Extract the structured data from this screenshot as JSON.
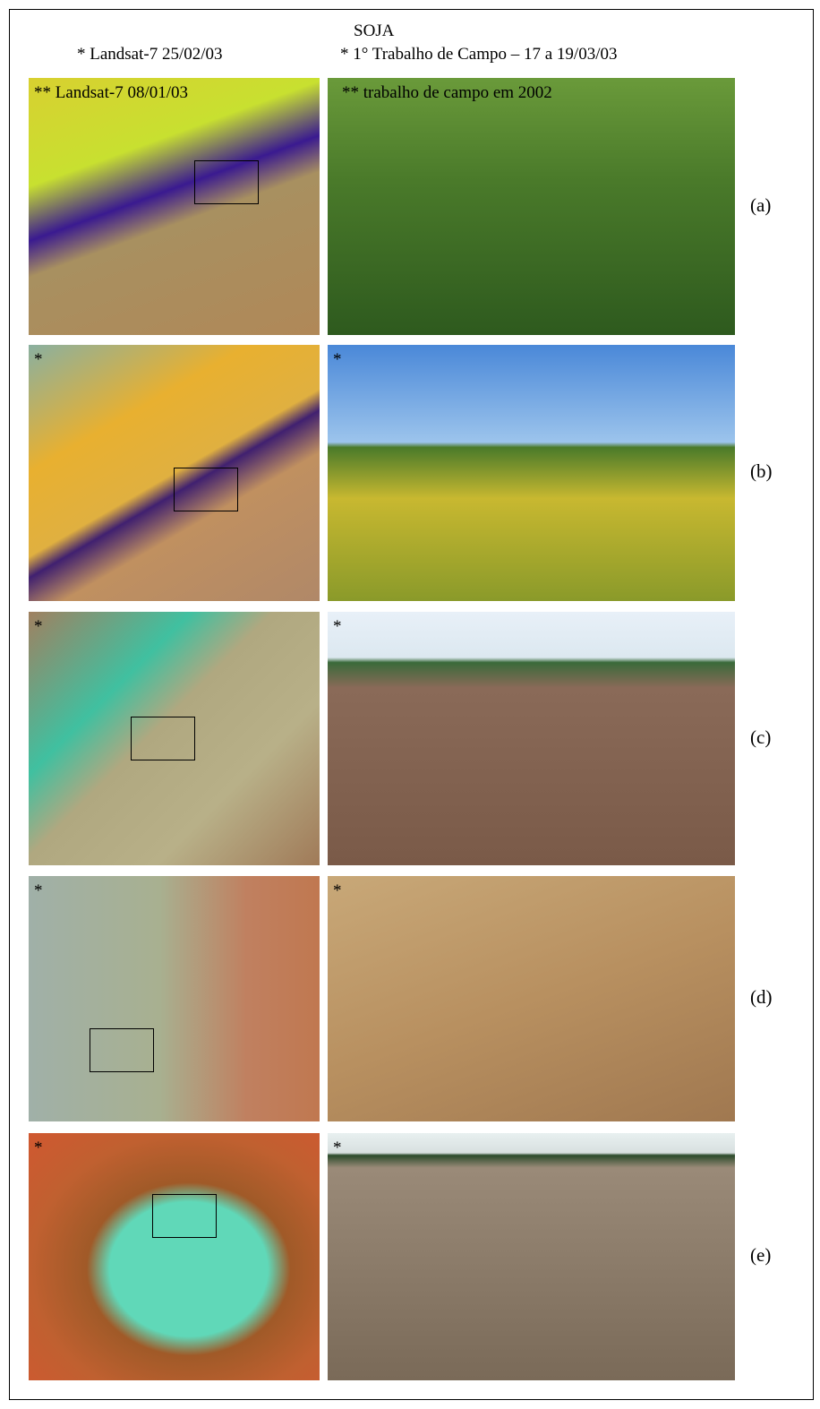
{
  "header": {
    "title": "SOJA",
    "left_caption": "* Landsat-7 25/02/03",
    "right_caption": "* 1° Trabalho de Campo – 17 a 19/03/03"
  },
  "rows": [
    {
      "label": "(a)",
      "satellite_note": "** Landsat-7 08/01/03",
      "photo_note": "** trabalho de campo em 2002"
    },
    {
      "label": "(b)",
      "satellite_note": "*",
      "photo_note": "*"
    },
    {
      "label": "(c)",
      "satellite_note": "*",
      "photo_note": "*"
    },
    {
      "label": "(d)",
      "satellite_note": "*",
      "photo_note": "*"
    },
    {
      "label": "(e)",
      "satellite_note": "*",
      "photo_note": "*"
    }
  ]
}
